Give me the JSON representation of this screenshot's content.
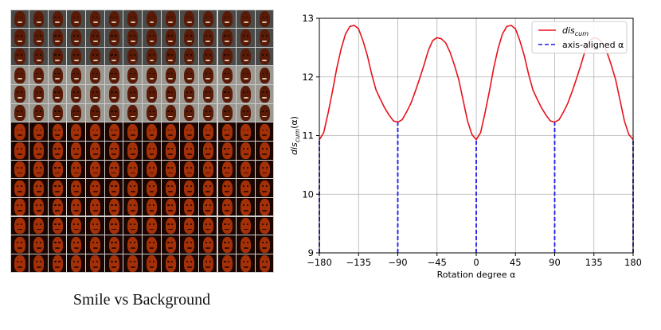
{
  "panel_left": {
    "caption": "Smile vs Background",
    "grid": {
      "rows": 14,
      "cols": 14,
      "row_transition": 6
    }
  },
  "chart_data": {
    "type": "line",
    "xlabel": "Rotation degree α",
    "ylabel_main": "dis",
    "ylabel_sub": "cum",
    "ylabel_suffix": "(α)",
    "xlim": [
      -180,
      180
    ],
    "ylim": [
      9,
      13
    ],
    "xticks": [
      -180,
      -135,
      -90,
      -45,
      0,
      45,
      90,
      135,
      180
    ],
    "xtick_labels": [
      "−180",
      "−135",
      "−90",
      "−45",
      "0",
      "45",
      "90",
      "135",
      "180"
    ],
    "yticks": [
      9,
      10,
      11,
      12,
      13
    ],
    "ytick_labels": [
      "9",
      "10",
      "11",
      "12",
      "13"
    ],
    "grid": true,
    "legend_position": "top-right",
    "series": [
      {
        "legend_main": "dis",
        "legend_sub": "cum",
        "color": "#e8121a",
        "style": "solid",
        "x": [
          -180,
          -175,
          -170,
          -165,
          -160,
          -155,
          -150,
          -145,
          -140,
          -135,
          -130,
          -125,
          -120,
          -115,
          -110,
          -105,
          -100,
          -95,
          -90,
          -85,
          -80,
          -75,
          -70,
          -65,
          -60,
          -55,
          -50,
          -45,
          -40,
          -35,
          -30,
          -25,
          -20,
          -15,
          -10,
          -5,
          0,
          5,
          10,
          15,
          20,
          25,
          30,
          35,
          40,
          45,
          50,
          55,
          60,
          65,
          70,
          75,
          80,
          85,
          90,
          95,
          100,
          105,
          110,
          115,
          120,
          125,
          130,
          135,
          140,
          145,
          150,
          155,
          160,
          165,
          170,
          175,
          180
        ],
        "y": [
          10.93,
          11.05,
          11.38,
          11.75,
          12.15,
          12.48,
          12.73,
          12.86,
          12.88,
          12.82,
          12.62,
          12.37,
          12.05,
          11.78,
          11.62,
          11.47,
          11.35,
          11.25,
          11.23,
          11.27,
          11.4,
          11.55,
          11.75,
          11.97,
          12.2,
          12.45,
          12.62,
          12.67,
          12.65,
          12.58,
          12.42,
          12.2,
          11.95,
          11.6,
          11.25,
          11.02,
          10.93,
          11.05,
          11.38,
          11.75,
          12.15,
          12.48,
          12.73,
          12.86,
          12.88,
          12.82,
          12.62,
          12.37,
          12.05,
          11.78,
          11.62,
          11.47,
          11.35,
          11.25,
          11.23,
          11.27,
          11.4,
          11.55,
          11.75,
          11.97,
          12.2,
          12.45,
          12.62,
          12.67,
          12.65,
          12.58,
          12.42,
          12.2,
          11.95,
          11.6,
          11.25,
          11.02,
          10.93
        ]
      },
      {
        "legend_label": "axis-aligned α",
        "color": "#1a1aee",
        "style": "dashed",
        "stems_x": [
          -180,
          -90,
          0,
          90,
          180
        ]
      }
    ]
  }
}
